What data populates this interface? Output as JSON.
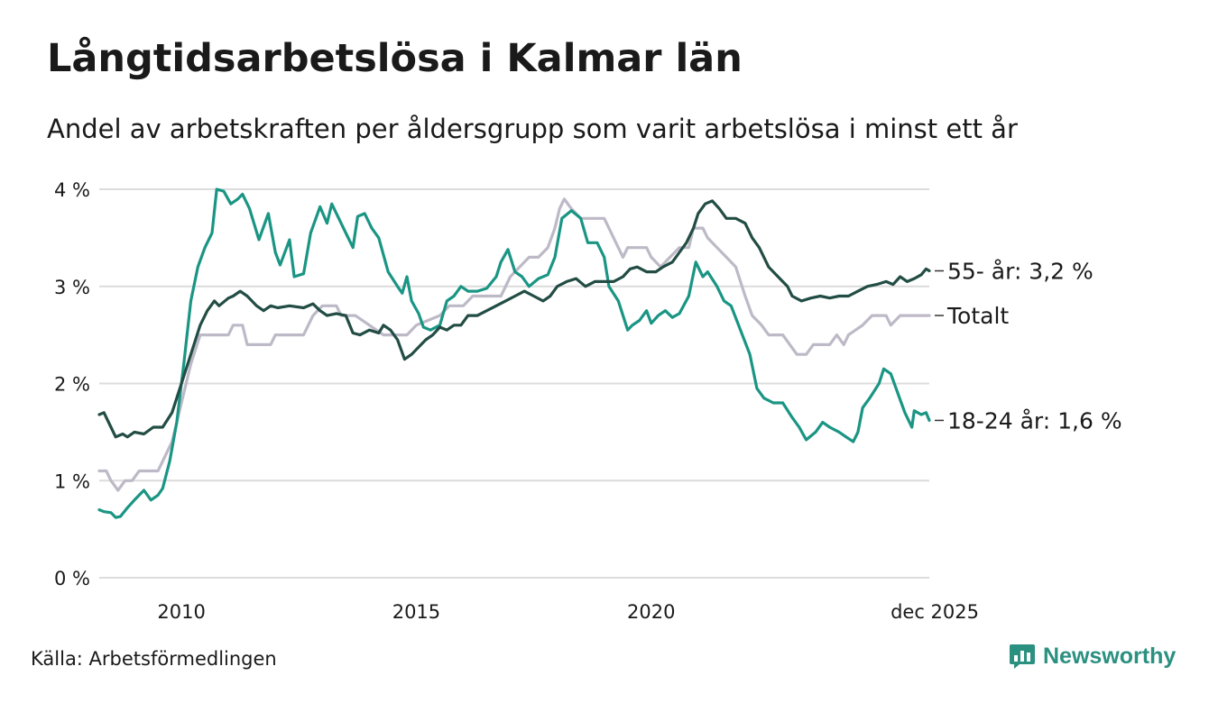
{
  "title": "Långtidsarbetslösa i Kalmar län",
  "subtitle": "Andel av arbetskraften per åldersgrupp som varit arbetslösa i minst ett år",
  "source": "Källa: Arbetsförmedlingen",
  "brand": {
    "name": "Newsworthy",
    "logo_icon": "bar-chart-icon",
    "color": "#2a9080"
  },
  "chart_data": {
    "type": "line",
    "title": "Långtidsarbetslösa i Kalmar län",
    "xlabel": "",
    "ylabel": "",
    "x_range": [
      2008.25,
      2025.92
    ],
    "ylim": [
      0,
      4
    ],
    "y_ticks": [
      0,
      1,
      2,
      3,
      4
    ],
    "y_tick_labels": [
      "0 %",
      "1 %",
      "2 %",
      "3 %",
      "4 %"
    ],
    "x_ticks": [
      2010,
      2015,
      2020,
      2025.92
    ],
    "x_tick_labels": [
      "2010",
      "2015",
      "2020",
      "dec 2025"
    ],
    "grid": true,
    "series": [
      {
        "name": "Totalt",
        "label": "Totalt",
        "color": "#bdb9c7",
        "points": [
          [
            2008.25,
            1.1
          ],
          [
            2008.4,
            1.1
          ],
          [
            2008.5,
            1.0
          ],
          [
            2008.65,
            0.9
          ],
          [
            2008.8,
            1.0
          ],
          [
            2008.95,
            1.0
          ],
          [
            2009.1,
            1.1
          ],
          [
            2009.5,
            1.1
          ],
          [
            2009.8,
            1.4
          ],
          [
            2010.0,
            1.8
          ],
          [
            2010.2,
            2.2
          ],
          [
            2010.4,
            2.5
          ],
          [
            2011.0,
            2.5
          ],
          [
            2011.1,
            2.6
          ],
          [
            2011.3,
            2.6
          ],
          [
            2011.4,
            2.4
          ],
          [
            2011.9,
            2.4
          ],
          [
            2012.0,
            2.5
          ],
          [
            2012.6,
            2.5
          ],
          [
            2012.8,
            2.7
          ],
          [
            2013.0,
            2.8
          ],
          [
            2013.3,
            2.8
          ],
          [
            2013.4,
            2.7
          ],
          [
            2013.7,
            2.7
          ],
          [
            2014.0,
            2.6
          ],
          [
            2014.3,
            2.5
          ],
          [
            2014.8,
            2.5
          ],
          [
            2015.0,
            2.6
          ],
          [
            2015.5,
            2.7
          ],
          [
            2015.7,
            2.8
          ],
          [
            2016.0,
            2.8
          ],
          [
            2016.2,
            2.9
          ],
          [
            2016.8,
            2.9
          ],
          [
            2017.0,
            3.1
          ],
          [
            2017.2,
            3.2
          ],
          [
            2017.4,
            3.3
          ],
          [
            2017.6,
            3.3
          ],
          [
            2017.8,
            3.4
          ],
          [
            2017.95,
            3.6
          ],
          [
            2018.05,
            3.8
          ],
          [
            2018.15,
            3.9
          ],
          [
            2018.3,
            3.8
          ],
          [
            2018.5,
            3.7
          ],
          [
            2019.0,
            3.7
          ],
          [
            2019.2,
            3.5
          ],
          [
            2019.4,
            3.3
          ],
          [
            2019.5,
            3.4
          ],
          [
            2019.9,
            3.4
          ],
          [
            2020.0,
            3.3
          ],
          [
            2020.2,
            3.2
          ],
          [
            2020.4,
            3.3
          ],
          [
            2020.6,
            3.4
          ],
          [
            2020.8,
            3.4
          ],
          [
            2020.9,
            3.6
          ],
          [
            2021.1,
            3.6
          ],
          [
            2021.2,
            3.5
          ],
          [
            2021.4,
            3.4
          ],
          [
            2021.6,
            3.3
          ],
          [
            2021.8,
            3.2
          ],
          [
            2022.0,
            2.9
          ],
          [
            2022.15,
            2.7
          ],
          [
            2022.35,
            2.6
          ],
          [
            2022.5,
            2.5
          ],
          [
            2022.8,
            2.5
          ],
          [
            2022.95,
            2.4
          ],
          [
            2023.1,
            2.3
          ],
          [
            2023.3,
            2.3
          ],
          [
            2023.45,
            2.4
          ],
          [
            2023.8,
            2.4
          ],
          [
            2023.95,
            2.5
          ],
          [
            2024.1,
            2.4
          ],
          [
            2024.2,
            2.5
          ],
          [
            2024.5,
            2.6
          ],
          [
            2024.7,
            2.7
          ],
          [
            2025.0,
            2.7
          ],
          [
            2025.1,
            2.6
          ],
          [
            2025.3,
            2.7
          ],
          [
            2025.92,
            2.7
          ]
        ]
      },
      {
        "name": "18-24 år",
        "label": "18-24 år: 1,6 %",
        "color": "#1a9584",
        "points": [
          [
            2008.25,
            0.7
          ],
          [
            2008.35,
            0.68
          ],
          [
            2008.5,
            0.67
          ],
          [
            2008.6,
            0.62
          ],
          [
            2008.7,
            0.63
          ],
          [
            2008.85,
            0.72
          ],
          [
            2009.0,
            0.8
          ],
          [
            2009.2,
            0.9
          ],
          [
            2009.35,
            0.8
          ],
          [
            2009.5,
            0.85
          ],
          [
            2009.6,
            0.92
          ],
          [
            2009.75,
            1.2
          ],
          [
            2009.9,
            1.6
          ],
          [
            2010.05,
            2.2
          ],
          [
            2010.2,
            2.85
          ],
          [
            2010.35,
            3.2
          ],
          [
            2010.5,
            3.4
          ],
          [
            2010.65,
            3.55
          ],
          [
            2010.75,
            4.0
          ],
          [
            2010.9,
            3.98
          ],
          [
            2011.05,
            3.85
          ],
          [
            2011.2,
            3.9
          ],
          [
            2011.3,
            3.95
          ],
          [
            2011.45,
            3.8
          ],
          [
            2011.65,
            3.48
          ],
          [
            2011.85,
            3.75
          ],
          [
            2012.0,
            3.35
          ],
          [
            2012.1,
            3.22
          ],
          [
            2012.3,
            3.48
          ],
          [
            2012.4,
            3.1
          ],
          [
            2012.6,
            3.13
          ],
          [
            2012.75,
            3.55
          ],
          [
            2012.95,
            3.82
          ],
          [
            2013.1,
            3.65
          ],
          [
            2013.2,
            3.85
          ],
          [
            2013.35,
            3.7
          ],
          [
            2013.5,
            3.55
          ],
          [
            2013.65,
            3.4
          ],
          [
            2013.75,
            3.72
          ],
          [
            2013.9,
            3.75
          ],
          [
            2014.05,
            3.6
          ],
          [
            2014.2,
            3.5
          ],
          [
            2014.4,
            3.15
          ],
          [
            2014.6,
            3.0
          ],
          [
            2014.7,
            2.93
          ],
          [
            2014.8,
            3.1
          ],
          [
            2014.9,
            2.85
          ],
          [
            2015.05,
            2.72
          ],
          [
            2015.15,
            2.58
          ],
          [
            2015.3,
            2.55
          ],
          [
            2015.5,
            2.6
          ],
          [
            2015.65,
            2.85
          ],
          [
            2015.8,
            2.9
          ],
          [
            2015.95,
            3.0
          ],
          [
            2016.1,
            2.95
          ],
          [
            2016.3,
            2.95
          ],
          [
            2016.5,
            2.98
          ],
          [
            2016.7,
            3.1
          ],
          [
            2016.8,
            3.25
          ],
          [
            2016.95,
            3.38
          ],
          [
            2017.1,
            3.15
          ],
          [
            2017.25,
            3.1
          ],
          [
            2017.4,
            3.0
          ],
          [
            2017.6,
            3.08
          ],
          [
            2017.8,
            3.12
          ],
          [
            2017.95,
            3.3
          ],
          [
            2018.1,
            3.7
          ],
          [
            2018.3,
            3.78
          ],
          [
            2018.5,
            3.7
          ],
          [
            2018.65,
            3.45
          ],
          [
            2018.85,
            3.45
          ],
          [
            2019.0,
            3.3
          ],
          [
            2019.1,
            3.0
          ],
          [
            2019.3,
            2.85
          ],
          [
            2019.5,
            2.55
          ],
          [
            2019.6,
            2.6
          ],
          [
            2019.75,
            2.65
          ],
          [
            2019.9,
            2.75
          ],
          [
            2020.0,
            2.62
          ],
          [
            2020.15,
            2.7
          ],
          [
            2020.3,
            2.75
          ],
          [
            2020.45,
            2.68
          ],
          [
            2020.6,
            2.72
          ],
          [
            2020.8,
            2.9
          ],
          [
            2020.95,
            3.25
          ],
          [
            2021.1,
            3.1
          ],
          [
            2021.2,
            3.15
          ],
          [
            2021.4,
            3.0
          ],
          [
            2021.55,
            2.85
          ],
          [
            2021.7,
            2.8
          ],
          [
            2021.9,
            2.55
          ],
          [
            2022.1,
            2.3
          ],
          [
            2022.25,
            1.95
          ],
          [
            2022.4,
            1.85
          ],
          [
            2022.6,
            1.8
          ],
          [
            2022.8,
            1.8
          ],
          [
            2023.0,
            1.65
          ],
          [
            2023.15,
            1.55
          ],
          [
            2023.3,
            1.42
          ],
          [
            2023.5,
            1.5
          ],
          [
            2023.65,
            1.6
          ],
          [
            2023.8,
            1.55
          ],
          [
            2024.0,
            1.5
          ],
          [
            2024.15,
            1.45
          ],
          [
            2024.3,
            1.4
          ],
          [
            2024.4,
            1.5
          ],
          [
            2024.5,
            1.75
          ],
          [
            2024.65,
            1.85
          ],
          [
            2024.85,
            2.0
          ],
          [
            2024.95,
            2.15
          ],
          [
            2025.1,
            2.1
          ],
          [
            2025.25,
            1.9
          ],
          [
            2025.4,
            1.7
          ],
          [
            2025.55,
            1.55
          ],
          [
            2025.6,
            1.72
          ],
          [
            2025.75,
            1.68
          ],
          [
            2025.85,
            1.7
          ],
          [
            2025.92,
            1.62
          ]
        ]
      },
      {
        "name": "55- år",
        "label": "55- år: 3,2 %",
        "color": "#224d44",
        "points": [
          [
            2008.25,
            1.68
          ],
          [
            2008.35,
            1.7
          ],
          [
            2008.5,
            1.55
          ],
          [
            2008.6,
            1.45
          ],
          [
            2008.75,
            1.48
          ],
          [
            2008.85,
            1.45
          ],
          [
            2009.0,
            1.5
          ],
          [
            2009.2,
            1.48
          ],
          [
            2009.4,
            1.55
          ],
          [
            2009.6,
            1.55
          ],
          [
            2009.8,
            1.7
          ],
          [
            2010.0,
            2.0
          ],
          [
            2010.2,
            2.3
          ],
          [
            2010.4,
            2.6
          ],
          [
            2010.55,
            2.75
          ],
          [
            2010.7,
            2.85
          ],
          [
            2010.8,
            2.8
          ],
          [
            2011.0,
            2.88
          ],
          [
            2011.1,
            2.9
          ],
          [
            2011.25,
            2.95
          ],
          [
            2011.4,
            2.9
          ],
          [
            2011.6,
            2.8
          ],
          [
            2011.75,
            2.75
          ],
          [
            2011.9,
            2.8
          ],
          [
            2012.05,
            2.78
          ],
          [
            2012.3,
            2.8
          ],
          [
            2012.6,
            2.78
          ],
          [
            2012.8,
            2.82
          ],
          [
            2012.95,
            2.75
          ],
          [
            2013.1,
            2.7
          ],
          [
            2013.3,
            2.72
          ],
          [
            2013.5,
            2.7
          ],
          [
            2013.65,
            2.52
          ],
          [
            2013.8,
            2.5
          ],
          [
            2014.0,
            2.55
          ],
          [
            2014.2,
            2.52
          ],
          [
            2014.3,
            2.6
          ],
          [
            2014.45,
            2.55
          ],
          [
            2014.6,
            2.45
          ],
          [
            2014.75,
            2.25
          ],
          [
            2014.9,
            2.3
          ],
          [
            2015.0,
            2.35
          ],
          [
            2015.2,
            2.45
          ],
          [
            2015.35,
            2.5
          ],
          [
            2015.5,
            2.58
          ],
          [
            2015.65,
            2.55
          ],
          [
            2015.8,
            2.6
          ],
          [
            2015.95,
            2.6
          ],
          [
            2016.1,
            2.7
          ],
          [
            2016.3,
            2.7
          ],
          [
            2016.5,
            2.75
          ],
          [
            2016.7,
            2.8
          ],
          [
            2016.9,
            2.85
          ],
          [
            2017.1,
            2.9
          ],
          [
            2017.3,
            2.95
          ],
          [
            2017.5,
            2.9
          ],
          [
            2017.7,
            2.85
          ],
          [
            2017.85,
            2.9
          ],
          [
            2018.0,
            3.0
          ],
          [
            2018.2,
            3.05
          ],
          [
            2018.4,
            3.08
          ],
          [
            2018.6,
            3.0
          ],
          [
            2018.8,
            3.05
          ],
          [
            2019.0,
            3.05
          ],
          [
            2019.2,
            3.05
          ],
          [
            2019.4,
            3.1
          ],
          [
            2019.55,
            3.18
          ],
          [
            2019.7,
            3.2
          ],
          [
            2019.9,
            3.15
          ],
          [
            2020.1,
            3.15
          ],
          [
            2020.25,
            3.2
          ],
          [
            2020.45,
            3.25
          ],
          [
            2020.6,
            3.35
          ],
          [
            2020.75,
            3.45
          ],
          [
            2020.9,
            3.6
          ],
          [
            2021.0,
            3.75
          ],
          [
            2021.15,
            3.85
          ],
          [
            2021.3,
            3.88
          ],
          [
            2021.45,
            3.8
          ],
          [
            2021.6,
            3.7
          ],
          [
            2021.8,
            3.7
          ],
          [
            2022.0,
            3.65
          ],
          [
            2022.15,
            3.5
          ],
          [
            2022.3,
            3.4
          ],
          [
            2022.5,
            3.2
          ],
          [
            2022.7,
            3.1
          ],
          [
            2022.9,
            3.0
          ],
          [
            2023.0,
            2.9
          ],
          [
            2023.2,
            2.85
          ],
          [
            2023.4,
            2.88
          ],
          [
            2023.6,
            2.9
          ],
          [
            2023.8,
            2.88
          ],
          [
            2024.0,
            2.9
          ],
          [
            2024.2,
            2.9
          ],
          [
            2024.4,
            2.95
          ],
          [
            2024.6,
            3.0
          ],
          [
            2024.8,
            3.02
          ],
          [
            2025.0,
            3.05
          ],
          [
            2025.15,
            3.02
          ],
          [
            2025.3,
            3.1
          ],
          [
            2025.45,
            3.05
          ],
          [
            2025.6,
            3.08
          ],
          [
            2025.75,
            3.12
          ],
          [
            2025.85,
            3.18
          ],
          [
            2025.92,
            3.16
          ]
        ]
      }
    ]
  }
}
